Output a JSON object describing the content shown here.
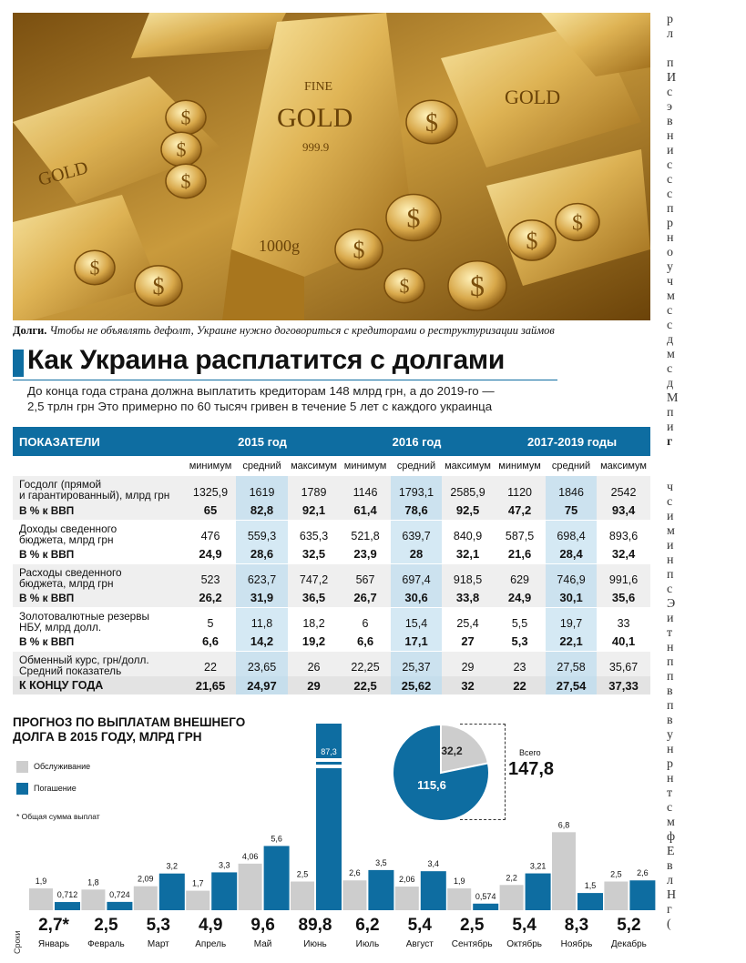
{
  "caption": {
    "lead": "Долги.",
    "text": "Чтобы не объявлять дефолт, Украине нужно договориться с кредиторами о реструктуризации займов"
  },
  "photo": {
    "bar_labels": [
      "FINE",
      "GOLD",
      "999.9",
      "1000g"
    ],
    "coin_symbol": "$"
  },
  "title": "Как Украина расплатится с долгами",
  "lead": [
    "До конца года страна должна выплатить кредиторам 148 млрд грн, а до 2019-го —",
    "2,5 трлн грн Это примерно по 60 тысяч гривен в течение 5 лет с каждого украинца"
  ],
  "table": {
    "header_label": "ПОКАЗАТЕЛИ",
    "periods": [
      "2015 год",
      "2016 год",
      "2017-2019 годы"
    ],
    "subheads": [
      "минимум",
      "средний",
      "максимум"
    ],
    "rows": [
      {
        "label1": "Госдолг (прямой",
        "label2": "и гарантированный), млрд грн",
        "sub": "В % к ВВП",
        "v": [
          "1325,9",
          "1619",
          "1789",
          "1146",
          "1793,1",
          "2585,9",
          "1120",
          "1846",
          "2542"
        ],
        "p": [
          "65",
          "82,8",
          "92,1",
          "61,4",
          "78,6",
          "92,5",
          "47,2",
          "75",
          "93,4"
        ]
      },
      {
        "label1": "Доходы сведенного",
        "label2": "бюджета, млрд грн",
        "sub": "В % к ВВП",
        "v": [
          "476",
          "559,3",
          "635,3",
          "521,8",
          "639,7",
          "840,9",
          "587,5",
          "698,4",
          "893,6"
        ],
        "p": [
          "24,9",
          "28,6",
          "32,5",
          "23,9",
          "28",
          "32,1",
          "21,6",
          "28,4",
          "32,4"
        ]
      },
      {
        "label1": "Расходы сведенного",
        "label2": "бюджета, млрд грн",
        "sub": "В % к ВВП",
        "v": [
          "523",
          "623,7",
          "747,2",
          "567",
          "697,4",
          "918,5",
          "629",
          "746,9",
          "991,6"
        ],
        "p": [
          "26,2",
          "31,9",
          "36,5",
          "26,7",
          "30,6",
          "33,8",
          "24,9",
          "30,1",
          "35,6"
        ]
      },
      {
        "label1": "Золотовалютные резервы",
        "label2": "НБУ, млрд долл.",
        "sub": "В % к ВВП",
        "v": [
          "5",
          "11,8",
          "18,2",
          "6",
          "15,4",
          "25,4",
          "5,5",
          "19,7",
          "33"
        ],
        "p": [
          "6,6",
          "14,2",
          "19,2",
          "6,6",
          "17,1",
          "27",
          "5,3",
          "22,1",
          "40,1"
        ]
      },
      {
        "label1": "Обменный курс, грн/долл.",
        "label2": "Средний показатель",
        "sub": "",
        "v": [
          "22",
          "23,65",
          "26",
          "22,25",
          "25,37",
          "29",
          "23",
          "27,58",
          "35,67"
        ],
        "p": null
      }
    ],
    "end_of_year": {
      "label": "К КОНЦУ ГОДА",
      "values": [
        "21,65",
        "24,97",
        "29",
        "22,5",
        "25,62",
        "32",
        "22",
        "27,54",
        "37,33"
      ]
    }
  },
  "chart": {
    "title_line1": "ПРОГНОЗ ПО ВЫПЛАТАМ ВНЕШНЕГО",
    "title_line2": "ДОЛГА В 2015 ГОДУ, МЛРД ГРН",
    "legend_service": "Обслуживание",
    "legend_repay": "Погашение",
    "footnote": "* Общая сумма выплат",
    "sroki": "Сроки",
    "total_label": "Всего",
    "total": "147,8",
    "pie_service": "32,2",
    "pie_repay": "115,6"
  },
  "chart_data": {
    "type": "bar",
    "categories": [
      "Январь",
      "Февраль",
      "Март",
      "Апрель",
      "Май",
      "Июнь",
      "Июль",
      "Август",
      "Сентябрь",
      "Октябрь",
      "Ноябрь",
      "Декабрь"
    ],
    "series": [
      {
        "name": "Обслуживание",
        "values": [
          1.9,
          1.8,
          2.09,
          1.7,
          4.06,
          2.5,
          2.6,
          2.06,
          1.9,
          2.2,
          6.8,
          2.5
        ],
        "labels": [
          "1,9",
          "1,8",
          "2,09",
          "1,7",
          "4,06",
          "2,5",
          "2,6",
          "2,06",
          "1,9",
          "2,2",
          "6,8",
          "2,5"
        ]
      },
      {
        "name": "Погашение",
        "values": [
          0.712,
          0.724,
          3.2,
          3.3,
          5.6,
          87.3,
          3.5,
          3.4,
          0.574,
          3.21,
          1.5,
          2.6
        ],
        "labels": [
          "0,712",
          "0,724",
          "3,2",
          "3,3",
          "5,6",
          "87,3",
          "3,5",
          "3,4",
          "0,574",
          "3,21",
          "1,5",
          "2,6"
        ]
      }
    ],
    "totals": [
      "2,7*",
      "2,5",
      "5,3",
      "4,9",
      "9,6",
      "89,8",
      "6,2",
      "5,4",
      "2,5",
      "5,4",
      "8,3",
      "5,2"
    ],
    "pie": {
      "values": [
        32.2,
        115.6
      ],
      "labels": [
        "Обслуживание",
        "Погашение"
      ]
    },
    "colors": {
      "service": "#cdcdcd",
      "repay": "#0e6da1"
    }
  },
  "side_letters": [
    "р",
    "л",
    "п",
    "И",
    "с",
    "э",
    "в",
    "н",
    "и",
    "с",
    "с",
    "с",
    "п",
    "р",
    "н",
    "о",
    "у",
    "ч",
    "м",
    "с",
    "с",
    "д",
    "м",
    "с",
    "д",
    "М",
    "п",
    "и",
    "г",
    "ч",
    "с",
    "и",
    "м",
    "и",
    "н",
    "п",
    "с",
    "Э",
    "и",
    "т",
    "н",
    "п",
    "п",
    "в",
    "п",
    "в",
    "у",
    "н",
    "р",
    "н",
    "т",
    "с",
    "м",
    "ф",
    "Е",
    "в",
    "л",
    "Н",
    "г",
    "("
  ]
}
